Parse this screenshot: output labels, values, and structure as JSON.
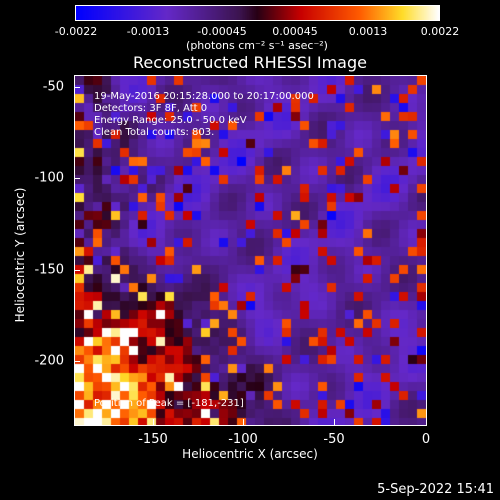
{
  "colorbar": {
    "ticks": [
      "-0.0022",
      "-0.0013",
      "-0.00045",
      "0.00045",
      "0.0013",
      "0.0022"
    ],
    "units": "(photons cm⁻² s⁻¹ asec⁻²)"
  },
  "title": "Reconstructed RHESSI Image",
  "info": {
    "line1": "19-May-2016 20:15:28.000 to 20:17:00.000",
    "line2": "Detectors: 3F 8F, Att 0",
    "line3": "Energy Range: 25.0 - 50.0 keV",
    "line4": "Clean    Total counts: 803.",
    "peak": "Position of Peak = [-181,-231]"
  },
  "axes": {
    "xlabel": "Heliocentric X (arcsec)",
    "ylabel": "Heliocentric Y (arcsec)",
    "xticks": [
      "-150",
      "-100",
      "-50",
      "0"
    ],
    "yticks": [
      "-50",
      "-100",
      "-150",
      "-200"
    ]
  },
  "timestamp": "5-Sep-2022 15:41"
}
